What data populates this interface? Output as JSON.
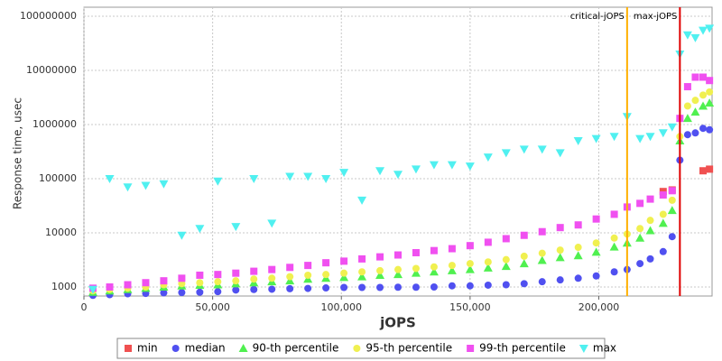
{
  "chart_data": {
    "type": "scatter",
    "x_label": "jOPS",
    "y_label": "Response time, usec",
    "log_y": true,
    "grid": true,
    "legend": "bottom",
    "xlim": [
      0,
      244000
    ],
    "ylim": [
      681,
      146800000
    ],
    "xticks": [
      0,
      {
        "value": 50000,
        "label": "50,000"
      },
      {
        "value": 100000,
        "label": "100,000"
      },
      {
        "value": 150000,
        "label": "150,000"
      },
      {
        "value": 200000,
        "label": "200,000"
      }
    ],
    "yticks": [
      1000,
      10000,
      100000,
      1000000,
      10000000,
      100000000
    ],
    "x": [
      3500,
      10000,
      17000,
      24000,
      31000,
      38000,
      45000,
      52000,
      59000,
      66000,
      73000,
      80000,
      87000,
      94000,
      101000,
      108000,
      115000,
      122000,
      129000,
      136000,
      143000,
      150000,
      157000,
      164000,
      171000,
      178000,
      185000,
      192000,
      199000,
      206000,
      211000,
      216000,
      220000,
      225000,
      228500,
      231500,
      234500,
      237500,
      240500,
      243000
    ],
    "series": [
      {
        "name": "min",
        "color": "#f05050",
        "marker": "square",
        "values": [
          null,
          null,
          null,
          null,
          null,
          null,
          null,
          null,
          null,
          null,
          null,
          null,
          null,
          null,
          null,
          null,
          null,
          null,
          null,
          null,
          null,
          null,
          null,
          null,
          null,
          null,
          null,
          null,
          null,
          null,
          null,
          null,
          null,
          58000,
          62000,
          null,
          null,
          null,
          140000,
          150000
        ]
      },
      {
        "name": "median",
        "color": "#5050f0",
        "marker": "circle",
        "values": [
          700,
          720,
          750,
          760,
          780,
          790,
          800,
          820,
          880,
          900,
          910,
          930,
          940,
          960,
          980,
          980,
          980,
          990,
          990,
          1000,
          1050,
          1050,
          1080,
          1100,
          1150,
          1250,
          1350,
          1450,
          1600,
          1900,
          2100,
          2700,
          3300,
          4500,
          8500,
          220000,
          650000,
          700000,
          850000,
          800000
        ]
      },
      {
        "name": "90-th percentile",
        "color": "#50f050",
        "marker": "triangle-up",
        "values": [
          800,
          850,
          900,
          950,
          1000,
          1050,
          1080,
          1100,
          1150,
          1200,
          1250,
          1300,
          1400,
          1450,
          1500,
          1550,
          1650,
          1700,
          1800,
          1900,
          2000,
          2100,
          2250,
          2400,
          2700,
          3100,
          3500,
          3800,
          4400,
          5500,
          6500,
          8000,
          11000,
          15000,
          26000,
          500000,
          1300000,
          1700000,
          2200000,
          2500000
        ]
      },
      {
        "name": "95-th percentile",
        "color": "#f0f050",
        "marker": "circle",
        "values": [
          850,
          900,
          950,
          1000,
          1100,
          1150,
          1200,
          1250,
          1300,
          1400,
          1450,
          1550,
          1650,
          1700,
          1800,
          1900,
          2000,
          2100,
          2200,
          2350,
          2500,
          2700,
          2900,
          3200,
          3700,
          4200,
          4800,
          5400,
          6500,
          8000,
          9500,
          12000,
          17000,
          22000,
          40000,
          600000,
          2200000,
          2800000,
          3500000,
          4000000
        ]
      },
      {
        "name": "99-th percentile",
        "color": "#f050f0",
        "marker": "square",
        "values": [
          950,
          1000,
          1100,
          1200,
          1300,
          1450,
          1650,
          1700,
          1800,
          1950,
          2100,
          2300,
          2500,
          2800,
          3000,
          3300,
          3600,
          3900,
          4300,
          4700,
          5100,
          5800,
          6700,
          7800,
          9000,
          10500,
          12500,
          14000,
          18000,
          22000,
          30000,
          35000,
          42000,
          50000,
          60000,
          1300000,
          5000000,
          7500000,
          7500000,
          6500000
        ]
      },
      {
        "name": "max",
        "color": "#50f0f0",
        "marker": "triangle-down",
        "values": [
          900,
          100000,
          70000,
          75000,
          80000,
          9000,
          12000,
          90000,
          13000,
          100000,
          15000,
          110000,
          110000,
          100000,
          130000,
          40000,
          140000,
          120000,
          150000,
          180000,
          180000,
          170000,
          250000,
          300000,
          350000,
          350000,
          300000,
          500000,
          550000,
          600000,
          1400000,
          550000,
          600000,
          700000,
          900000,
          20000000,
          45000000,
          40000000,
          55000000,
          60000000
        ]
      }
    ],
    "markers": [
      {
        "label": "critical-jOPS",
        "value": 211000,
        "color": "#ffb000"
      },
      {
        "label": "max-jOPS",
        "value": 231500,
        "color": "#e00000"
      }
    ]
  }
}
